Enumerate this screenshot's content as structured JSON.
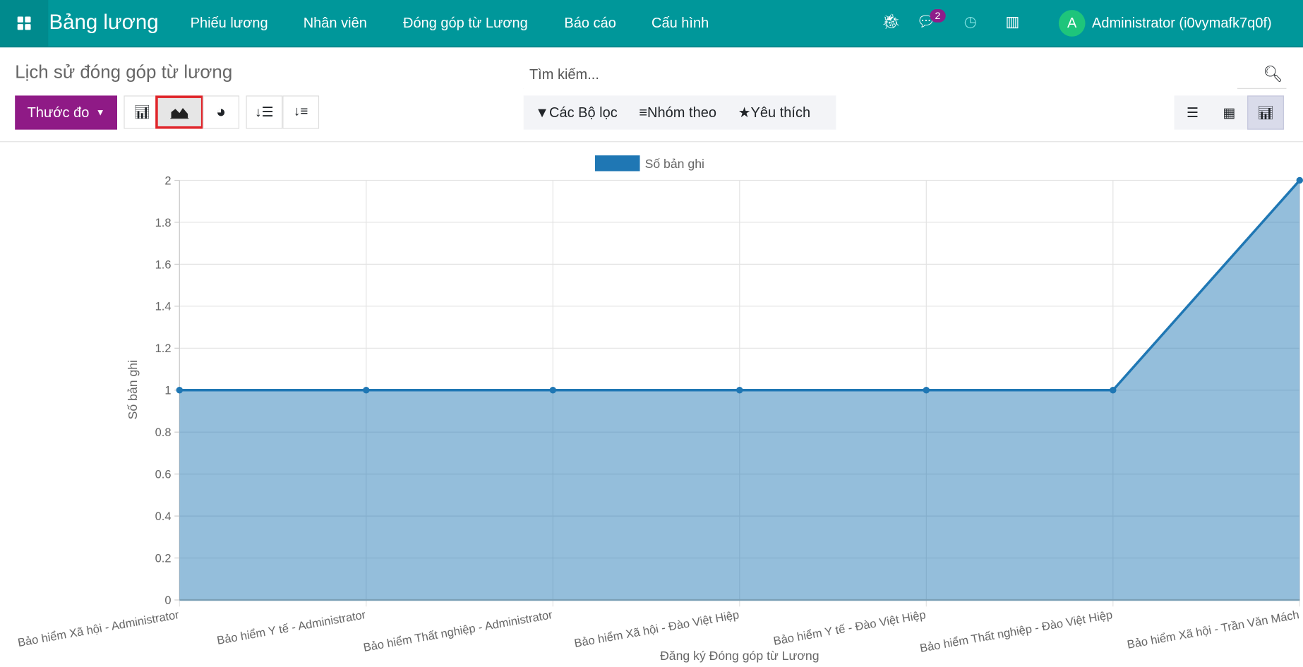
{
  "navbar": {
    "brand": "Bảng lương",
    "menu": [
      "Phiếu lương",
      "Nhân viên",
      "Đóng góp từ Lương",
      "Báo cáo",
      "Cấu hình"
    ],
    "message_count": "2",
    "avatar_letter": "A",
    "user": "Administrator (i0vymafk7q0f)",
    "color": "#00979a"
  },
  "control": {
    "title": "Lịch sử đóng góp từ lương",
    "measure_label": "Thước đo",
    "search_placeholder": "Tìm kiếm...",
    "filters_label": "Các Bộ lọc",
    "groupby_label": "Nhóm theo",
    "favorites_label": "Yêu thích",
    "active_chart_type": "area",
    "active_view": "graph"
  },
  "chart_data": {
    "type": "area",
    "categories": [
      "Bảo hiểm Xã hội - Administrator",
      "Bảo hiểm Y tế - Administrator",
      "Bảo hiểm Thất nghiệp - Administrator",
      "Bảo hiểm Xã hội - Đào Việt Hiệp",
      "Bảo hiểm Y tế - Đào Việt Hiệp",
      "Bảo hiểm Thất nghiệp - Đào Việt Hiệp",
      "Bảo hiểm Xã hội - Trần Văn Mách"
    ],
    "series": [
      {
        "name": "Số bản ghi",
        "values": [
          1,
          1,
          1,
          1,
          1,
          1,
          2
        ],
        "color": "#1f77b4"
      }
    ],
    "xlabel": "Đăng ký Đóng góp từ Lương",
    "ylabel": "Số bản ghi",
    "ylim": [
      0,
      2
    ],
    "yticks": [
      "0",
      "0.2",
      "0.4",
      "0.6",
      "0.8",
      "1",
      "1.2",
      "1.4",
      "1.6",
      "1.8",
      "2"
    ],
    "grid": true,
    "legend": "top"
  }
}
